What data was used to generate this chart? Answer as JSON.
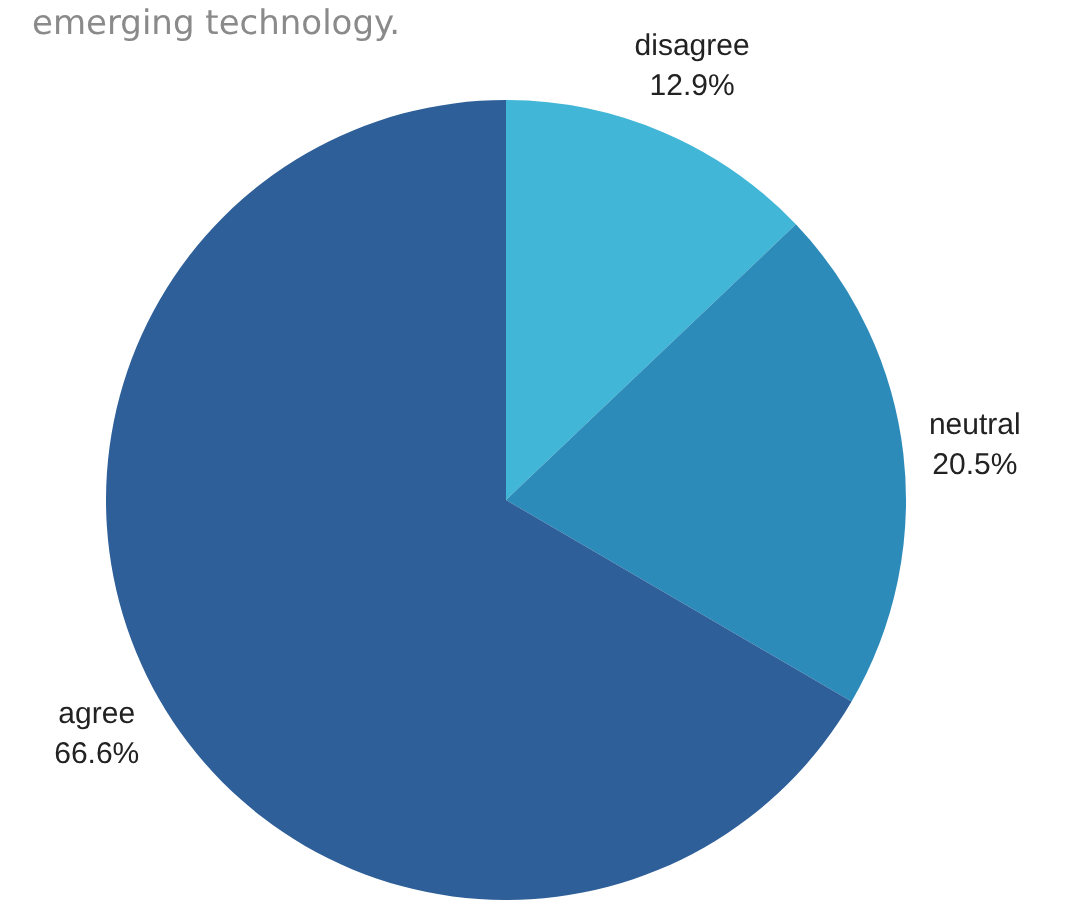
{
  "chart_data": {
    "type": "pie",
    "title": "emerging technology.",
    "categories": [
      "disagree",
      "neutral",
      "agree"
    ],
    "values": [
      12.9,
      20.5,
      66.6
    ],
    "value_labels": [
      "12.9%",
      "20.5%",
      "66.6%"
    ],
    "colors": [
      "#41b6d6",
      "#2d8bba",
      "#2e5f98"
    ],
    "legend": false
  }
}
